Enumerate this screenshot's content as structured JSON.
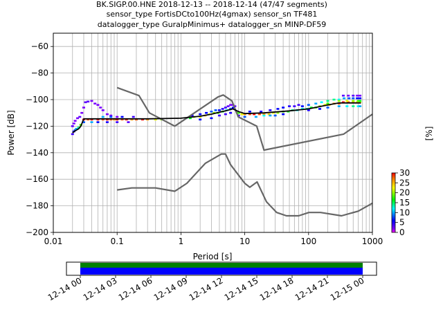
{
  "title_lines": [
    "BK.SIGP.00.HNE   2018-12-13 -- 2018-12-14  (47/47 segments)",
    "sensor_type FortisDCto100Hz(4gmax) sensor_sn TF481",
    "datalogger_type GuralpMinimus+ datalogger_sn MINP-DF59"
  ],
  "colorbar": {
    "label": "[%]",
    "ticks": [
      "0",
      "5",
      "10",
      "15",
      "20",
      "25",
      "30"
    ],
    "range": [
      0,
      30
    ]
  },
  "timeline": {
    "tick_labels": [
      "12-14 00",
      "12-14 03",
      "12-14 06",
      "12-14 09",
      "12-14 12",
      "12-14 15",
      "12-14 18",
      "12-14 21",
      "12-15 00"
    ],
    "coverage_colors": [
      "#008000",
      "#0000ff"
    ]
  },
  "chart_data": {
    "type": "line",
    "xscale": "log",
    "xlabel": "Period [s]",
    "ylabel": "Power [dB]",
    "xlim": [
      0.01,
      1000
    ],
    "ylim": [
      -200,
      -50
    ],
    "xticks": [
      {
        "v": 0.01,
        "label": "0.01"
      },
      {
        "v": 0.1,
        "label": "0.1"
      },
      {
        "v": 1,
        "label": "1"
      },
      {
        "v": 10,
        "label": "10"
      },
      {
        "v": 100,
        "label": "100"
      },
      {
        "v": 1000,
        "label": "1000"
      }
    ],
    "yticks": [
      -200,
      -180,
      -160,
      -140,
      -120,
      -100,
      -80,
      -60
    ],
    "grid": true,
    "series": [
      {
        "role": "high-noise-model",
        "color": "#666666",
        "points": [
          [
            0.1,
            -91
          ],
          [
            0.22,
            -97
          ],
          [
            0.32,
            -110
          ],
          [
            0.8,
            -120
          ],
          [
            3.8,
            -98
          ],
          [
            4.6,
            -96.5
          ],
          [
            6.3,
            -101
          ],
          [
            7.9,
            -113
          ],
          [
            15.4,
            -120
          ],
          [
            20,
            -138
          ],
          [
            354.8,
            -126
          ],
          [
            1000,
            -111
          ]
        ]
      },
      {
        "role": "low-noise-model",
        "color": "#666666",
        "points": [
          [
            0.1,
            -168
          ],
          [
            0.17,
            -166.5
          ],
          [
            0.4,
            -166.5
          ],
          [
            0.8,
            -169
          ],
          [
            1.24,
            -163
          ],
          [
            2.4,
            -148
          ],
          [
            4.3,
            -141
          ],
          [
            5,
            -141
          ],
          [
            6,
            -149
          ],
          [
            10,
            -163
          ],
          [
            12,
            -166
          ],
          [
            15.6,
            -162
          ],
          [
            21.9,
            -177
          ],
          [
            31.6,
            -185
          ],
          [
            45,
            -187.5
          ],
          [
            70,
            -187.5
          ],
          [
            101,
            -185
          ],
          [
            154,
            -185
          ],
          [
            328,
            -187.5
          ],
          [
            600,
            -184
          ],
          [
            1000,
            -178
          ]
        ]
      },
      {
        "role": "mode-median",
        "color": "#000000",
        "points": [
          [
            0.02,
            -125
          ],
          [
            0.022,
            -123.5
          ],
          [
            0.025,
            -122
          ],
          [
            0.027,
            -120
          ],
          [
            0.03,
            -114.5
          ],
          [
            0.04,
            -114.5
          ],
          [
            0.1,
            -114.5
          ],
          [
            0.3,
            -114.5
          ],
          [
            1,
            -114
          ],
          [
            2,
            -112.5
          ],
          [
            3,
            -111
          ],
          [
            4,
            -109.5
          ],
          [
            5,
            -108.5
          ],
          [
            6.5,
            -107
          ],
          [
            8,
            -109
          ],
          [
            10,
            -110.5
          ],
          [
            20,
            -110
          ],
          [
            50,
            -108.5
          ],
          [
            100,
            -107
          ],
          [
            200,
            -104
          ],
          [
            300,
            -102.5
          ],
          [
            660,
            -102.5
          ]
        ]
      }
    ],
    "ppsd_cells": [
      [
        0.02,
        -126,
        4
      ],
      [
        0.021,
        -124,
        6
      ],
      [
        0.022,
        -123,
        8
      ],
      [
        0.023,
        -122,
        10
      ],
      [
        0.025,
        -121,
        14
      ],
      [
        0.027,
        -119,
        18
      ],
      [
        0.02,
        -120,
        3
      ],
      [
        0.021,
        -118,
        2
      ],
      [
        0.022,
        -116,
        2
      ],
      [
        0.024,
        -114,
        2
      ],
      [
        0.026,
        -113,
        3
      ],
      [
        0.028,
        -110,
        2
      ],
      [
        0.03,
        -106,
        2
      ],
      [
        0.032,
        -102,
        3
      ],
      [
        0.035,
        -101.5,
        3
      ],
      [
        0.04,
        -101,
        2
      ],
      [
        0.045,
        -103,
        2
      ],
      [
        0.05,
        -104,
        2
      ],
      [
        0.055,
        -106,
        2
      ],
      [
        0.06,
        -108,
        2
      ],
      [
        0.07,
        -111,
        2
      ],
      [
        0.08,
        -112,
        2
      ],
      [
        0.1,
        -113,
        2
      ],
      [
        0.03,
        -115,
        30
      ],
      [
        0.035,
        -115,
        28
      ],
      [
        0.04,
        -115,
        30
      ],
      [
        0.05,
        -115,
        30
      ],
      [
        0.06,
        -115,
        28
      ],
      [
        0.07,
        -115,
        30
      ],
      [
        0.08,
        -115,
        28
      ],
      [
        0.09,
        -115,
        26
      ],
      [
        0.1,
        -115,
        30
      ],
      [
        0.12,
        -115,
        28
      ],
      [
        0.14,
        -115,
        30
      ],
      [
        0.17,
        -115,
        26
      ],
      [
        0.2,
        -115,
        28
      ],
      [
        0.25,
        -115,
        30
      ],
      [
        0.3,
        -115,
        26
      ],
      [
        0.4,
        -115,
        22
      ],
      [
        0.5,
        -115,
        20
      ],
      [
        0.03,
        -117,
        8
      ],
      [
        0.04,
        -117,
        10
      ],
      [
        0.05,
        -117,
        6
      ],
      [
        0.07,
        -117,
        5
      ],
      [
        0.1,
        -117,
        4
      ],
      [
        0.15,
        -117,
        3
      ],
      [
        0.06,
        -113,
        10
      ],
      [
        0.08,
        -113,
        8
      ],
      [
        0.12,
        -113,
        6
      ],
      [
        0.18,
        -113,
        4
      ],
      [
        1.2,
        -114,
        12
      ],
      [
        1.4,
        -114,
        16
      ],
      [
        1.6,
        -113,
        20
      ],
      [
        2,
        -113,
        22
      ],
      [
        2.4,
        -112,
        24
      ],
      [
        2.8,
        -111,
        22
      ],
      [
        3.3,
        -110,
        20
      ],
      [
        3.8,
        -110,
        18
      ],
      [
        4.5,
        -109,
        16
      ],
      [
        5.2,
        -108,
        12
      ],
      [
        6,
        -107,
        8
      ],
      [
        6.6,
        -106,
        6
      ],
      [
        1.5,
        -112,
        5
      ],
      [
        2,
        -111,
        6
      ],
      [
        2.5,
        -110,
        6
      ],
      [
        3,
        -109,
        8
      ],
      [
        3.5,
        -108,
        8
      ],
      [
        4,
        -108,
        6
      ],
      [
        4.5,
        -107,
        5
      ],
      [
        5,
        -106,
        4
      ],
      [
        5.5,
        -105,
        3
      ],
      [
        6,
        -104,
        2
      ],
      [
        6.5,
        -104,
        2
      ],
      [
        7,
        -105,
        3
      ],
      [
        2,
        -115,
        6
      ],
      [
        3,
        -114,
        6
      ],
      [
        4,
        -112,
        4
      ],
      [
        5,
        -111,
        4
      ],
      [
        6,
        -110,
        5
      ],
      [
        8,
        -112,
        4
      ],
      [
        8,
        -110,
        18
      ],
      [
        9,
        -111,
        22
      ],
      [
        10,
        -111,
        26
      ],
      [
        12,
        -111,
        28
      ],
      [
        14,
        -111,
        30
      ],
      [
        17,
        -111,
        28
      ],
      [
        20,
        -111,
        26
      ],
      [
        24,
        -111,
        24
      ],
      [
        28,
        -110,
        22
      ],
      [
        33,
        -110,
        20
      ],
      [
        40,
        -109,
        18
      ],
      [
        48,
        -109,
        16
      ],
      [
        56,
        -108,
        14
      ],
      [
        66,
        -108,
        12
      ],
      [
        10,
        -113,
        8
      ],
      [
        15,
        -113,
        10
      ],
      [
        20,
        -112,
        12
      ],
      [
        25,
        -112,
        10
      ],
      [
        30,
        -112,
        8
      ],
      [
        40,
        -111,
        6
      ],
      [
        12,
        -109,
        6
      ],
      [
        18,
        -109,
        5
      ],
      [
        25,
        -108,
        5
      ],
      [
        33,
        -107,
        6
      ],
      [
        40,
        -106,
        6
      ],
      [
        50,
        -105,
        5
      ],
      [
        60,
        -105,
        4
      ],
      [
        70,
        -104,
        4
      ],
      [
        80,
        -107,
        12
      ],
      [
        95,
        -107,
        14
      ],
      [
        110,
        -106,
        16
      ],
      [
        130,
        -106,
        18
      ],
      [
        150,
        -105,
        20
      ],
      [
        180,
        -104,
        22
      ],
      [
        210,
        -104,
        24
      ],
      [
        250,
        -103,
        26
      ],
      [
        300,
        -103,
        28
      ],
      [
        350,
        -102,
        30
      ],
      [
        420,
        -102,
        28
      ],
      [
        500,
        -102,
        26
      ],
      [
        580,
        -102,
        24
      ],
      [
        640,
        -102,
        22
      ],
      [
        80,
        -105,
        6
      ],
      [
        100,
        -104,
        8
      ],
      [
        130,
        -103,
        10
      ],
      [
        160,
        -102,
        12
      ],
      [
        200,
        -101,
        14
      ],
      [
        250,
        -100,
        14
      ],
      [
        300,
        -100,
        12
      ],
      [
        360,
        -99,
        10
      ],
      [
        430,
        -99,
        8
      ],
      [
        500,
        -99,
        8
      ],
      [
        580,
        -99,
        6
      ],
      [
        640,
        -99,
        6
      ],
      [
        350,
        -97,
        3
      ],
      [
        420,
        -97,
        2
      ],
      [
        500,
        -97,
        3
      ],
      [
        580,
        -97,
        2
      ],
      [
        640,
        -97,
        2
      ],
      [
        100,
        -108,
        5
      ],
      [
        150,
        -107,
        6
      ],
      [
        200,
        -106,
        8
      ],
      [
        300,
        -105,
        10
      ],
      [
        400,
        -105,
        12
      ],
      [
        500,
        -105,
        14
      ],
      [
        600,
        -105,
        12
      ],
      [
        640,
        -105,
        10
      ],
      [
        200,
        -103,
        18
      ],
      [
        300,
        -101,
        20
      ],
      [
        400,
        -101,
        22
      ],
      [
        500,
        -101,
        20
      ],
      [
        600,
        -101,
        18
      ],
      [
        640,
        -101,
        16
      ]
    ]
  }
}
